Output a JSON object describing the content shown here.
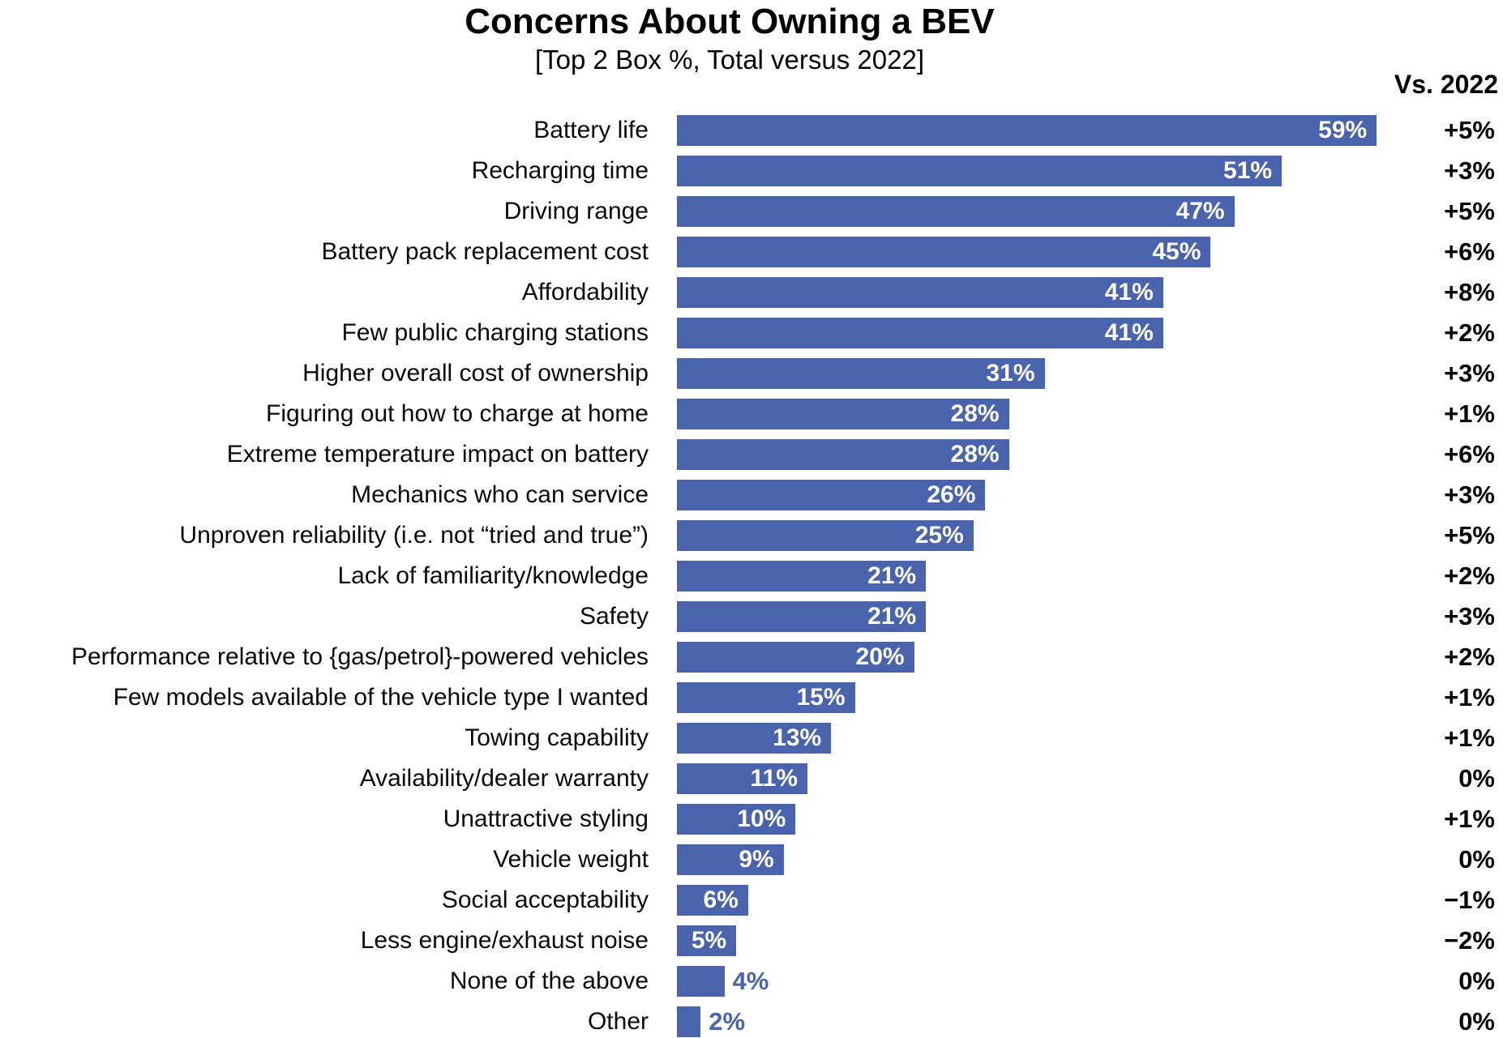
{
  "colors": {
    "bar": "#4A63AD",
    "value_inside": "#FFFFFF",
    "value_outside": "#4A63AD",
    "text": "#000000"
  },
  "chart_data": {
    "type": "bar",
    "orientation": "horizontal",
    "title": "Concerns About Owning a BEV",
    "subtitle": "[Top 2 Box %, Total versus 2022]",
    "xlabel": "",
    "ylabel": "",
    "xlim": [
      0,
      61
    ],
    "grid": false,
    "legend": false,
    "value_suffix": "%",
    "categories": [
      "Battery life",
      "Recharging time",
      "Driving range",
      "Battery pack replacement cost",
      "Affordability",
      "Few public charging stations",
      "Higher overall cost of ownership",
      "Figuring out how to charge at home",
      "Extreme temperature impact on battery",
      "Mechanics who can service",
      "Unproven reliability (i.e. not “tried and true”)",
      "Lack of familiarity/knowledge",
      "Safety",
      "Performance relative to {gas/petrol}-powered vehicles",
      "Few models available of the vehicle type I wanted",
      "Towing capability",
      "Availability/dealer warranty",
      "Unattractive styling",
      "Vehicle weight",
      "Social acceptability",
      "Less engine/exhaust noise",
      "None of the above",
      "Other"
    ],
    "values": [
      59,
      51,
      47,
      45,
      41,
      41,
      31,
      28,
      28,
      26,
      25,
      21,
      21,
      20,
      15,
      13,
      11,
      10,
      9,
      6,
      5,
      4,
      2
    ],
    "value_labels": [
      "59%",
      "51%",
      "47%",
      "45%",
      "41%",
      "41%",
      "31%",
      "28%",
      "28%",
      "26%",
      "25%",
      "21%",
      "21%",
      "20%",
      "15%",
      "13%",
      "11%",
      "10%",
      "9%",
      "6%",
      "5%",
      "4%",
      "2%"
    ],
    "comparison_column": {
      "header": "Vs. 2022",
      "values": [
        "+5%",
        "+3%",
        "+5%",
        "+6%",
        "+8%",
        "+2%",
        "+3%",
        "+1%",
        "+6%",
        "+3%",
        "+5%",
        "+2%",
        "+3%",
        "+2%",
        "+1%",
        "+1%",
        "0%",
        "+1%",
        "0%",
        "−1%",
        "−2%",
        "0%",
        "0%"
      ]
    }
  }
}
